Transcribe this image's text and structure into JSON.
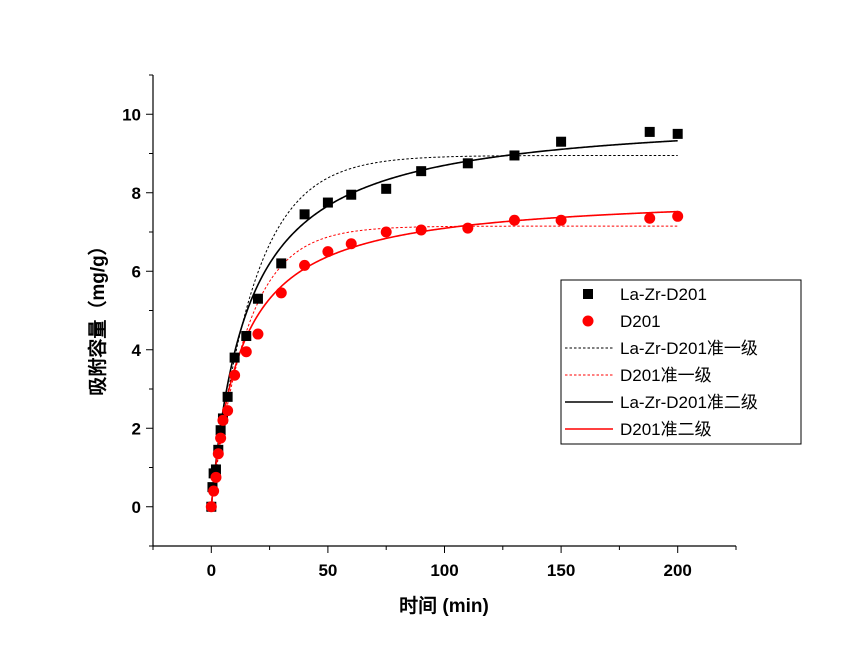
{
  "chart_data": {
    "type": "scatter",
    "xlabel": "时间 (min)",
    "ylabel": "吸附容量（mg/g）",
    "xlim": [
      -25,
      225
    ],
    "ylim": [
      -1,
      11
    ],
    "xticks": [
      0,
      50,
      100,
      150,
      200
    ],
    "yticks": [
      0,
      2,
      4,
      6,
      8,
      10
    ],
    "grid": false,
    "legend_position": "right",
    "series": [
      {
        "name": "La-Zr-D201",
        "kind": "points",
        "marker": "square",
        "color": "#000000",
        "x": [
          0,
          0.5,
          1,
          2,
          3,
          4,
          5,
          7,
          10,
          15,
          20,
          30,
          40,
          50,
          60,
          75,
          90,
          110,
          130,
          150,
          188,
          200
        ],
        "y": [
          0,
          0.5,
          0.85,
          0.95,
          1.45,
          1.95,
          2.25,
          2.8,
          3.8,
          4.35,
          5.3,
          6.2,
          7.45,
          7.75,
          7.95,
          8.1,
          8.55,
          8.75,
          8.95,
          9.3,
          9.55,
          9.5
        ]
      },
      {
        "name": "D201",
        "kind": "points",
        "marker": "circle",
        "color": "#ff0000",
        "x": [
          0,
          1,
          2,
          3,
          4,
          5,
          7,
          10,
          15,
          20,
          30,
          40,
          50,
          60,
          75,
          90,
          110,
          130,
          150,
          188,
          200
        ],
        "y": [
          0,
          0.4,
          0.75,
          1.35,
          1.75,
          2.2,
          2.45,
          3.35,
          3.95,
          4.4,
          5.45,
          6.15,
          6.5,
          6.7,
          7.0,
          7.05,
          7.1,
          7.3,
          7.3,
          7.35,
          7.4
        ]
      },
      {
        "name": "La-Zr-D201准一级",
        "kind": "pfo",
        "color": "#000000",
        "dashed": true,
        "qe": 8.95,
        "k": 0.055,
        "xmax": 200
      },
      {
        "name": "D201准一级",
        "kind": "pfo",
        "color": "#ff0000",
        "dashed": true,
        "qe": 7.15,
        "k": 0.065,
        "xmax": 200
      },
      {
        "name": "La-Zr-D201准二级",
        "kind": "pso",
        "color": "#000000",
        "dashed": false,
        "qe": 10.05,
        "k": 0.0064,
        "xmax": 200
      },
      {
        "name": "D201准二级",
        "kind": "pso",
        "color": "#ff0000",
        "dashed": false,
        "qe": 8.0,
        "k": 0.0098,
        "xmax": 200
      }
    ]
  }
}
